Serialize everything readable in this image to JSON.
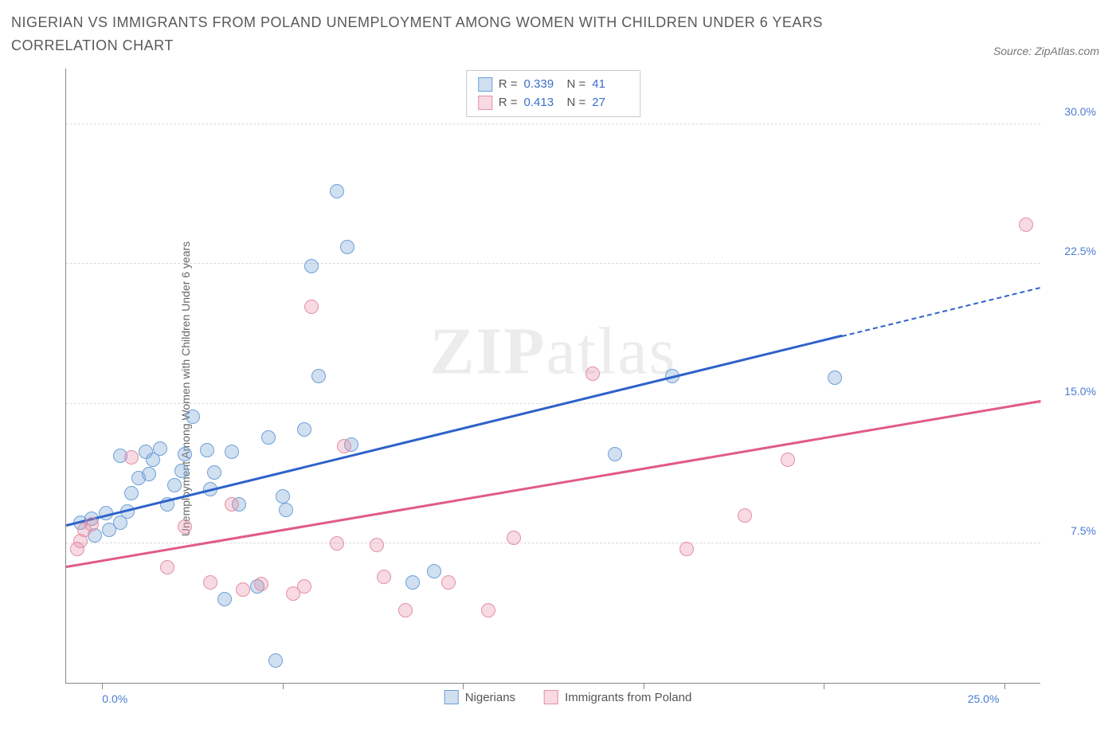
{
  "title": "NIGERIAN VS IMMIGRANTS FROM POLAND UNEMPLOYMENT AMONG WOMEN WITH CHILDREN UNDER 6 YEARS CORRELATION CHART",
  "source": "Source: ZipAtlas.com",
  "watermark": {
    "bold": "ZIP",
    "light": "atlas"
  },
  "chart": {
    "type": "scatter",
    "background_color": "#ffffff",
    "grid_color": "#dcdcdc",
    "axis_color": "#888888",
    "y_label": "Unemployment Among Women with Children Under 6 years",
    "xlim": [
      -1,
      26
    ],
    "ylim": [
      0,
      33
    ],
    "xticks": [
      0,
      5,
      10,
      15,
      20,
      25
    ],
    "x_visible_labels": [
      {
        "v": 0,
        "t": "0.0%"
      },
      {
        "v": 25,
        "t": "25.0%"
      }
    ],
    "yticks": [
      {
        "v": 7.5,
        "t": "7.5%"
      },
      {
        "v": 15.0,
        "t": "15.0%"
      },
      {
        "v": 22.5,
        "t": "22.5%"
      },
      {
        "v": 30.0,
        "t": "30.0%"
      }
    ],
    "tick_label_color": "#4a7bd0",
    "tick_label_fontsize": 14,
    "series": [
      {
        "key": "nigerians",
        "label": "Nigerians",
        "fill": "rgba(120,165,216,0.35)",
        "stroke": "#6f9fd8",
        "marker_radius": 9,
        "R": "0.339",
        "N": "41",
        "trend": {
          "x0": -1,
          "y0": 8.4,
          "x1": 26,
          "y1": 21.2,
          "color": "#2e62c9",
          "solid_until_x": 20.5
        },
        "points": [
          [
            -0.6,
            8.6
          ],
          [
            -0.3,
            8.8
          ],
          [
            -0.2,
            7.9
          ],
          [
            0.1,
            9.1
          ],
          [
            0.2,
            8.2
          ],
          [
            0.5,
            8.6
          ],
          [
            0.5,
            12.2
          ],
          [
            0.7,
            9.2
          ],
          [
            0.8,
            10.2
          ],
          [
            1.0,
            11.0
          ],
          [
            1.2,
            12.4
          ],
          [
            1.3,
            11.2
          ],
          [
            1.4,
            12.0
          ],
          [
            1.6,
            12.6
          ],
          [
            1.8,
            9.6
          ],
          [
            2.0,
            10.6
          ],
          [
            2.2,
            11.4
          ],
          [
            2.3,
            12.3
          ],
          [
            2.5,
            14.3
          ],
          [
            2.9,
            12.5
          ],
          [
            3.0,
            10.4
          ],
          [
            3.1,
            11.3
          ],
          [
            3.4,
            4.5
          ],
          [
            3.6,
            12.4
          ],
          [
            3.8,
            9.6
          ],
          [
            4.3,
            5.2
          ],
          [
            4.6,
            13.2
          ],
          [
            4.8,
            1.2
          ],
          [
            5.0,
            10.0
          ],
          [
            5.1,
            9.3
          ],
          [
            5.6,
            13.6
          ],
          [
            5.8,
            22.4
          ],
          [
            6.0,
            16.5
          ],
          [
            6.5,
            26.4
          ],
          [
            6.8,
            23.4
          ],
          [
            6.9,
            12.8
          ],
          [
            8.6,
            5.4
          ],
          [
            9.2,
            6.0
          ],
          [
            14.2,
            12.3
          ],
          [
            15.8,
            16.5
          ],
          [
            20.3,
            16.4
          ]
        ]
      },
      {
        "key": "poland",
        "label": "Immigrants from Poland",
        "fill": "rgba(231,140,165,0.32)",
        "stroke": "#e390a8",
        "marker_radius": 9,
        "R": "0.413",
        "N": "27",
        "trend": {
          "x0": -1,
          "y0": 6.2,
          "x1": 26,
          "y1": 15.1,
          "color": "#e05a8a",
          "solid_until_x": 26
        },
        "points": [
          [
            -0.7,
            7.2
          ],
          [
            -0.6,
            7.6
          ],
          [
            -0.5,
            8.2
          ],
          [
            -0.3,
            8.5
          ],
          [
            0.8,
            12.1
          ],
          [
            1.8,
            6.2
          ],
          [
            2.3,
            8.4
          ],
          [
            3.0,
            5.4
          ],
          [
            3.6,
            9.6
          ],
          [
            3.9,
            5.0
          ],
          [
            4.4,
            5.3
          ],
          [
            5.3,
            4.8
          ],
          [
            5.6,
            5.2
          ],
          [
            5.8,
            20.2
          ],
          [
            6.5,
            7.5
          ],
          [
            6.7,
            12.7
          ],
          [
            7.6,
            7.4
          ],
          [
            7.8,
            5.7
          ],
          [
            8.4,
            3.9
          ],
          [
            9.6,
            5.4
          ],
          [
            10.7,
            3.9
          ],
          [
            11.4,
            7.8
          ],
          [
            13.6,
            16.6
          ],
          [
            16.2,
            7.2
          ],
          [
            17.8,
            9.0
          ],
          [
            19.0,
            12.0
          ],
          [
            25.6,
            24.6
          ]
        ]
      }
    ]
  },
  "corr_legend_labels": {
    "R": "R =",
    "N": "N ="
  },
  "bottom_legend_labels": [
    "Nigerians",
    "Immigrants from Poland"
  ]
}
